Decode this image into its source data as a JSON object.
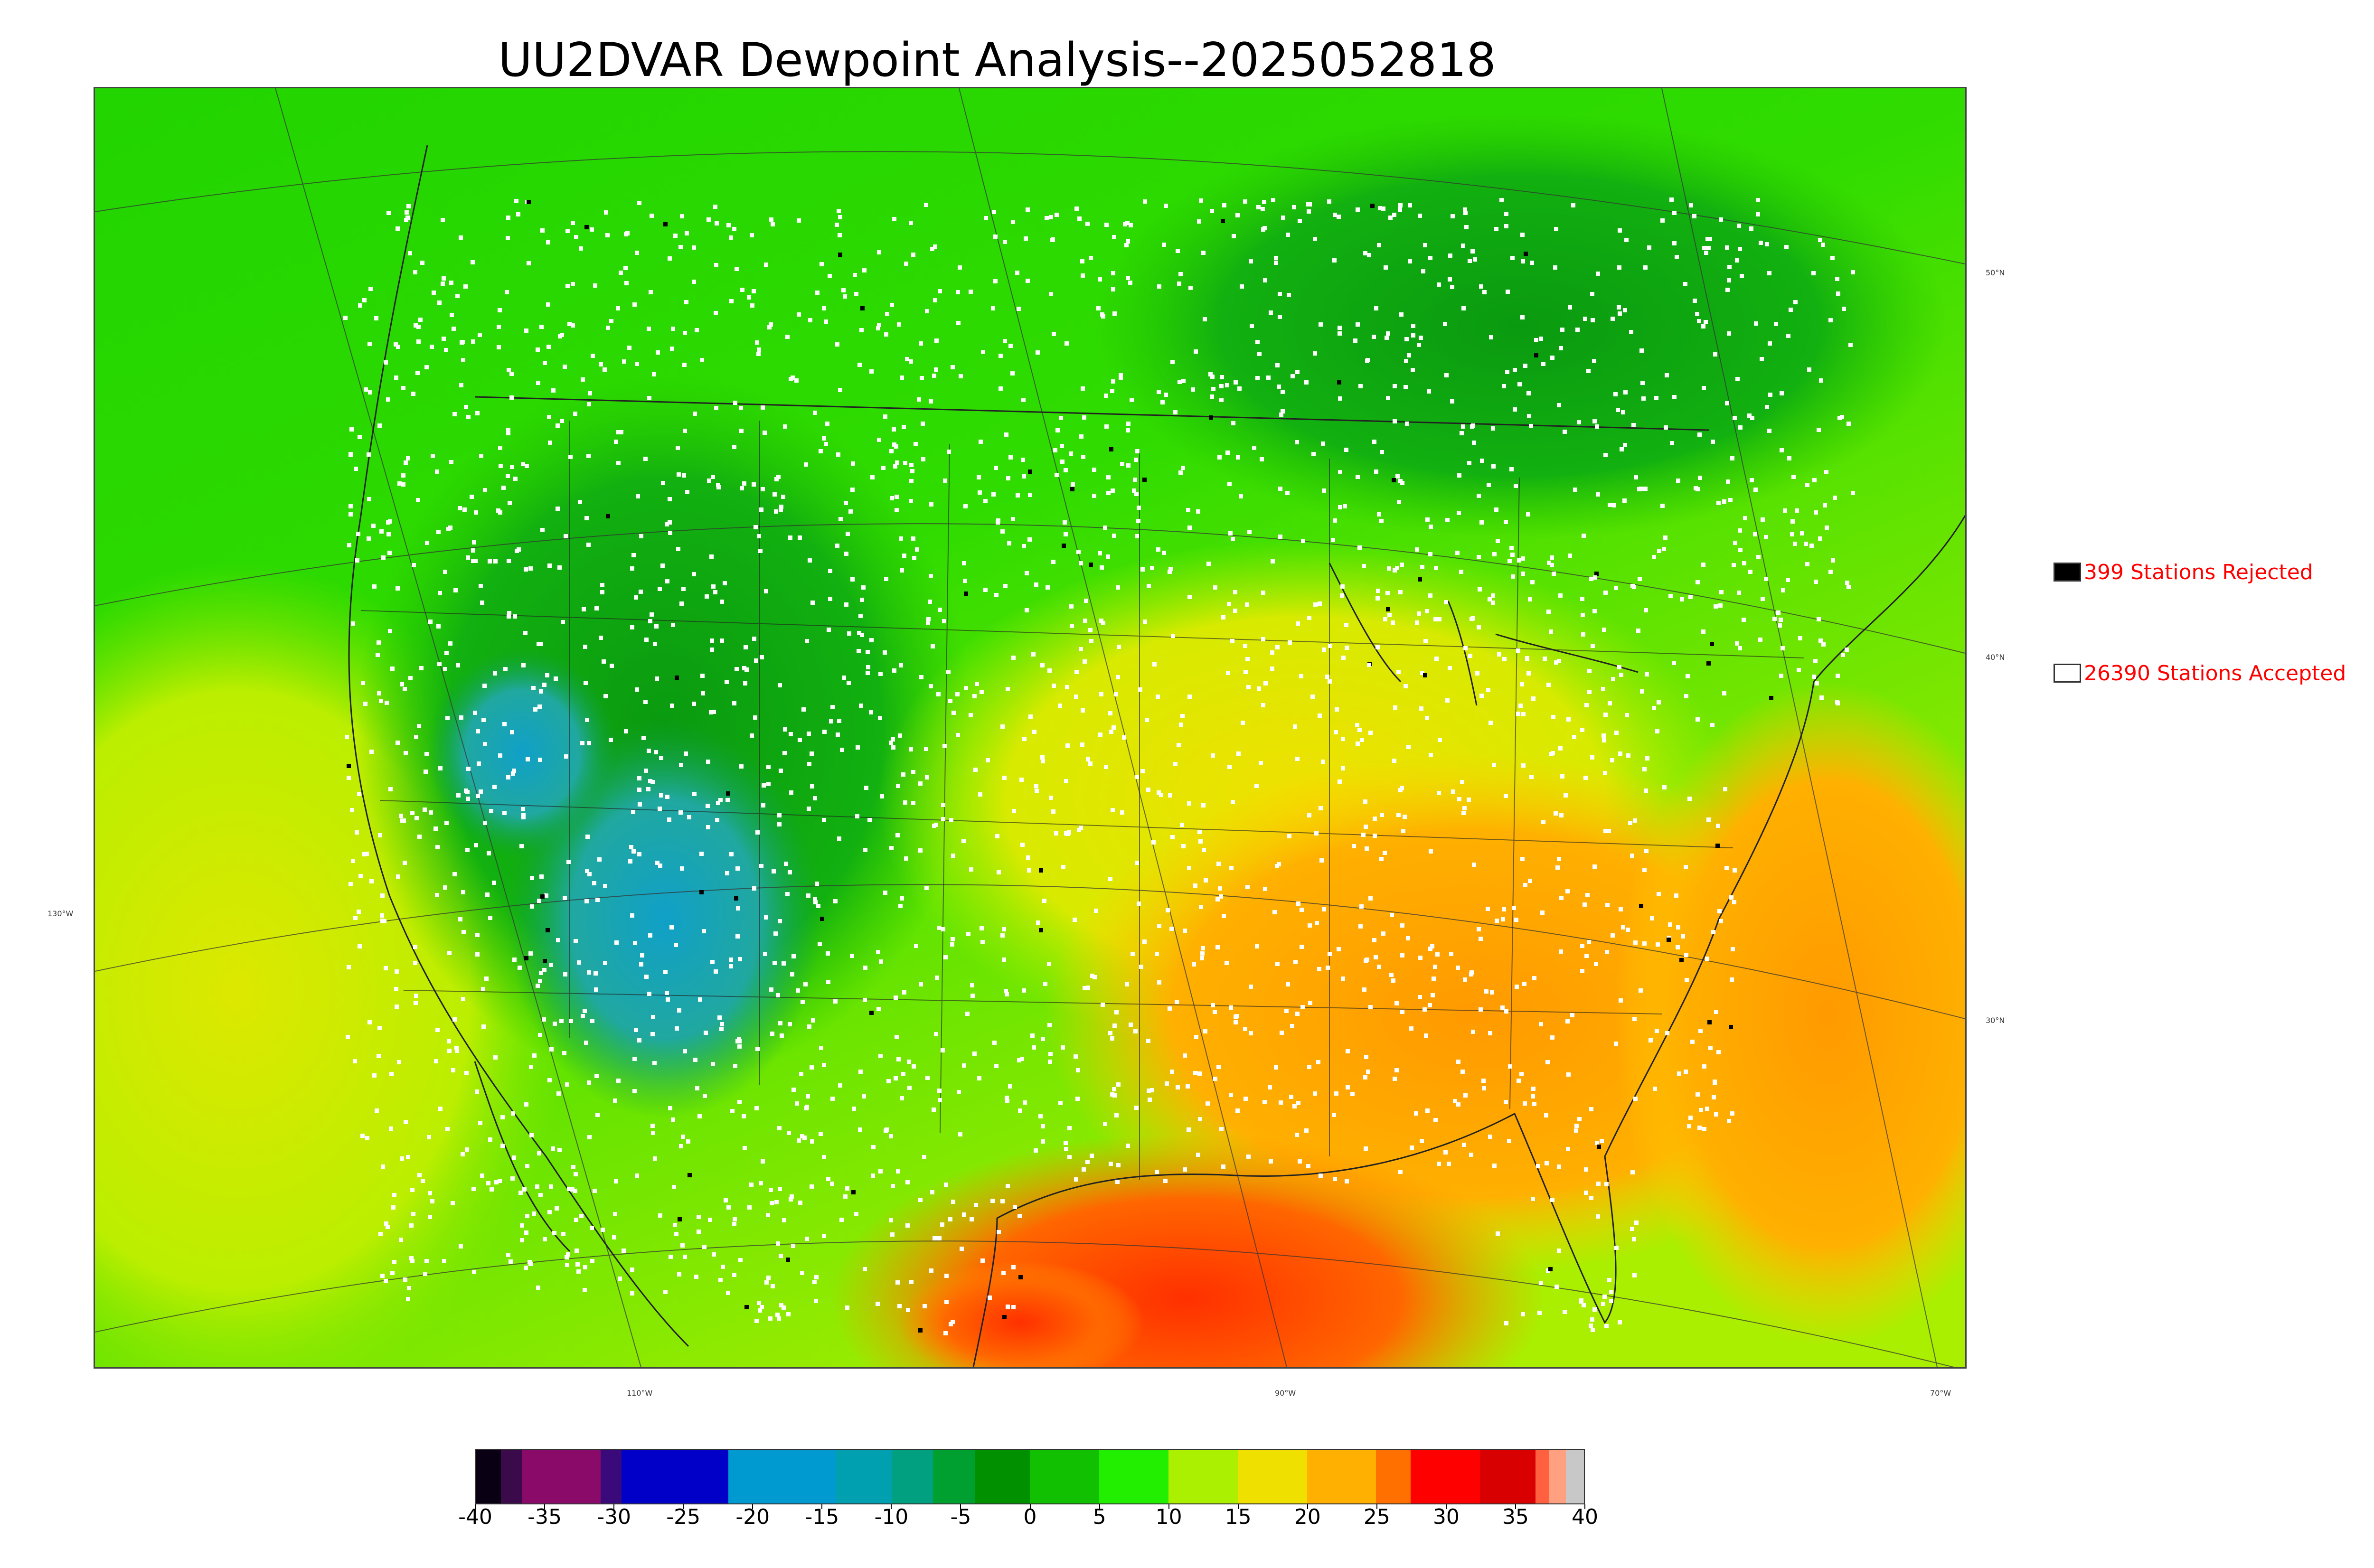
{
  "title": "UU2DVAR Dewpoint Analysis--2025052818",
  "map": {
    "latitude_labels": [
      "50°N",
      "40°N",
      "30°N"
    ],
    "longitude_labels": [
      "130°W",
      "110°W",
      "90°W",
      "70°W"
    ],
    "station_colors": {
      "accepted": "#ffffff",
      "rejected": "#000000"
    }
  },
  "legend": {
    "rejected_label": "399 Stations Rejected",
    "accepted_label": "26390 Stations Accepted",
    "rejected_color": "#000000",
    "accepted_color": "#ffffff",
    "text_color": "#ff0000"
  },
  "colorbar": {
    "min": -40,
    "max": 40,
    "tick_labels": [
      "-40",
      "-35",
      "-30",
      "-25",
      "-20",
      "-15",
      "-10",
      "-5",
      "0",
      "5",
      "10",
      "15",
      "20",
      "25",
      "30",
      "35",
      "40"
    ],
    "segments": [
      {
        "from": -40,
        "to": -38.2,
        "color": "#0a0014"
      },
      {
        "from": -38.2,
        "to": -36.7,
        "color": "#3a0a4a"
      },
      {
        "from": -36.7,
        "to": -31,
        "color": "#8a0a6a"
      },
      {
        "from": -31,
        "to": -29.5,
        "color": "#3a0a7a"
      },
      {
        "from": -29.5,
        "to": -21.8,
        "color": "#0000c8"
      },
      {
        "from": -21.8,
        "to": -14,
        "color": "#0099d0"
      },
      {
        "from": -14,
        "to": -10,
        "color": "#00a0b0"
      },
      {
        "from": -10,
        "to": -7,
        "color": "#00a080"
      },
      {
        "from": -7,
        "to": -4,
        "color": "#00a030"
      },
      {
        "from": -4,
        "to": 0,
        "color": "#009000"
      },
      {
        "from": 0,
        "to": 5,
        "color": "#11c000"
      },
      {
        "from": 5,
        "to": 10,
        "color": "#22ee00"
      },
      {
        "from": 10,
        "to": 15,
        "color": "#aaf000"
      },
      {
        "from": 15,
        "to": 20,
        "color": "#f0e000"
      },
      {
        "from": 20,
        "to": 25,
        "color": "#ffb000"
      },
      {
        "from": 25,
        "to": 27.5,
        "color": "#ff7000"
      },
      {
        "from": 27.5,
        "to": 32.5,
        "color": "#ff0000"
      },
      {
        "from": 32.5,
        "to": 36.5,
        "color": "#d80000"
      },
      {
        "from": 36.5,
        "to": 37.5,
        "color": "#ff6040"
      },
      {
        "from": 37.5,
        "to": 38.7,
        "color": "#ffa080"
      },
      {
        "from": 38.7,
        "to": 40,
        "color": "#c8c8c8"
      }
    ]
  }
}
